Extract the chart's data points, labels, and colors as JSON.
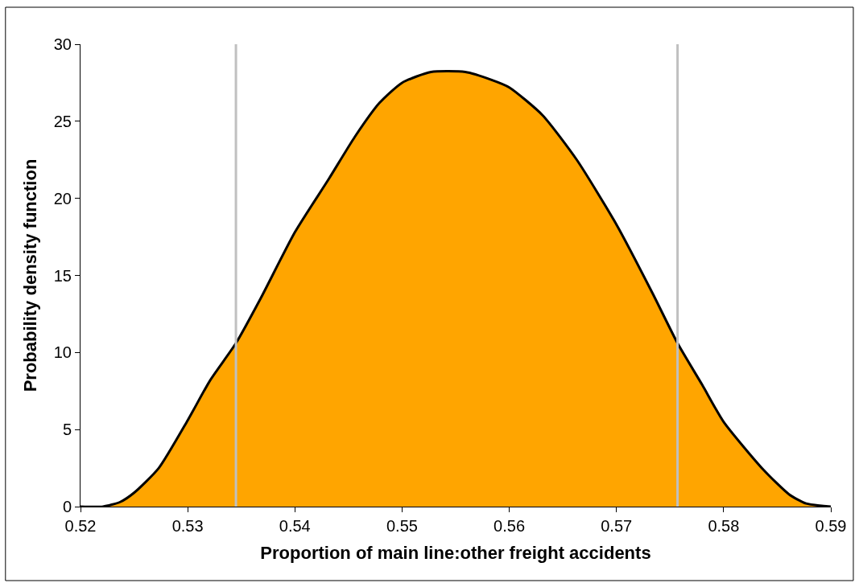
{
  "chart_data": {
    "type": "area",
    "xlabel": "Proportion of main line:other freight accidents",
    "ylabel": "Probability density function",
    "x": [
      0.52,
      0.5221,
      0.5237,
      0.525,
      0.5273,
      0.53,
      0.5321,
      0.5345,
      0.5368,
      0.54,
      0.5432,
      0.5456,
      0.5479,
      0.55,
      0.5527,
      0.5559,
      0.5583,
      0.56,
      0.5631,
      0.5663,
      0.57,
      0.5734,
      0.5757,
      0.578,
      0.58,
      0.5837,
      0.5861,
      0.5877,
      0.59
    ],
    "series": [
      {
        "color": "#ffa500",
        "values": [
          0,
          0,
          0.3,
          0.9,
          2.5,
          5.6,
          8.2,
          10.6,
          13.5,
          17.8,
          21.3,
          24,
          26.2,
          27.5,
          28.2,
          28.2,
          27.7,
          27.2,
          25.4,
          22.5,
          18.3,
          13.8,
          10.6,
          7.9,
          5.5,
          2.4,
          0.8,
          0.2,
          0
        ]
      }
    ],
    "xlim": [
      0.52,
      0.59
    ],
    "xticks": [
      0.52,
      0.53,
      0.54,
      0.55,
      0.56,
      0.57,
      0.58,
      0.59
    ],
    "ylim": [
      0,
      30
    ],
    "yticks": [
      0,
      5,
      10,
      15,
      20,
      25,
      30
    ],
    "grid": false,
    "legend": false,
    "ref_lines": [
      {
        "axis": "x",
        "value": 0.5345,
        "color": "#c0c0c0"
      },
      {
        "axis": "x",
        "value": 0.5757,
        "color": "#c0c0c0"
      }
    ]
  }
}
